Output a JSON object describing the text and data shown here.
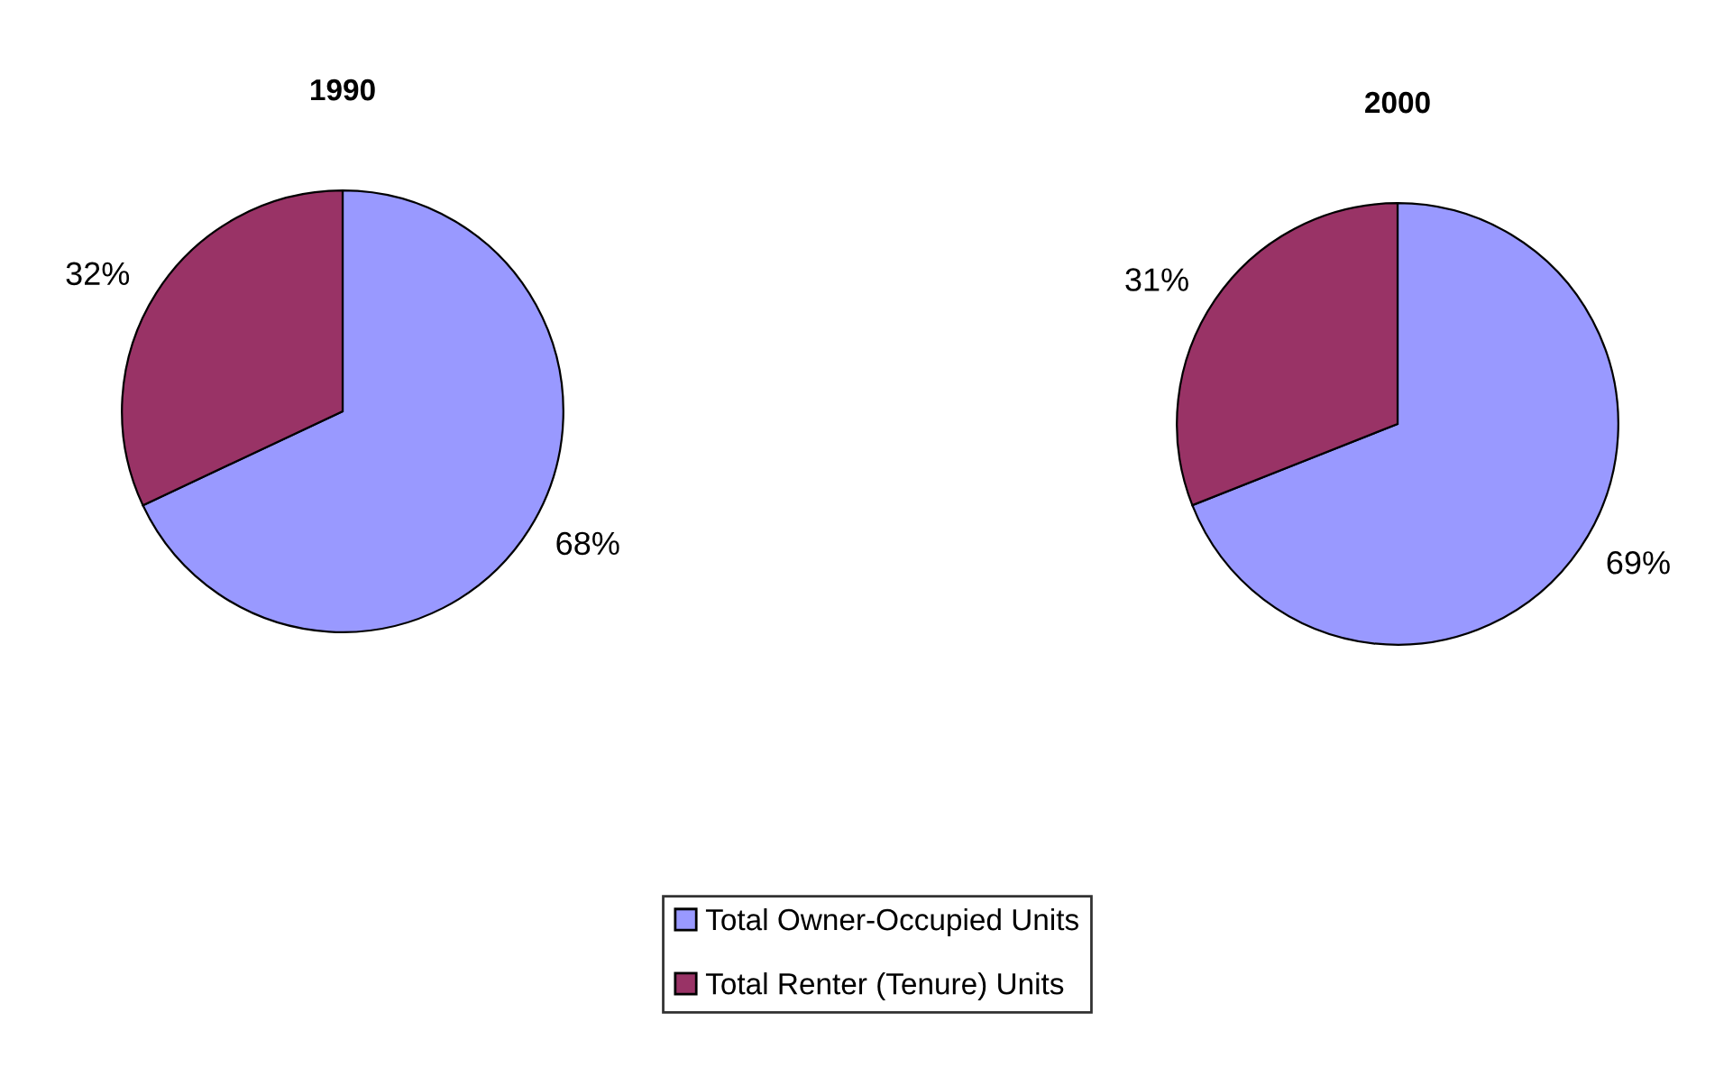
{
  "chart_data": [
    {
      "type": "pie",
      "title": "1990",
      "categories": [
        "Total Owner-Occupied Units",
        "Total Renter (Tenure) Units"
      ],
      "values": [
        68,
        32
      ],
      "colors": [
        "#9999ff",
        "#993366"
      ],
      "value_labels": [
        "68%",
        "32%"
      ],
      "legend": "bottom"
    },
    {
      "type": "pie",
      "title": "2000",
      "categories": [
        null,
        null
      ],
      "values": [
        69,
        31
      ],
      "colors": [
        "#9999ff",
        "#993366"
      ],
      "value_labels": [
        "69%",
        "31%"
      ]
    }
  ]
}
